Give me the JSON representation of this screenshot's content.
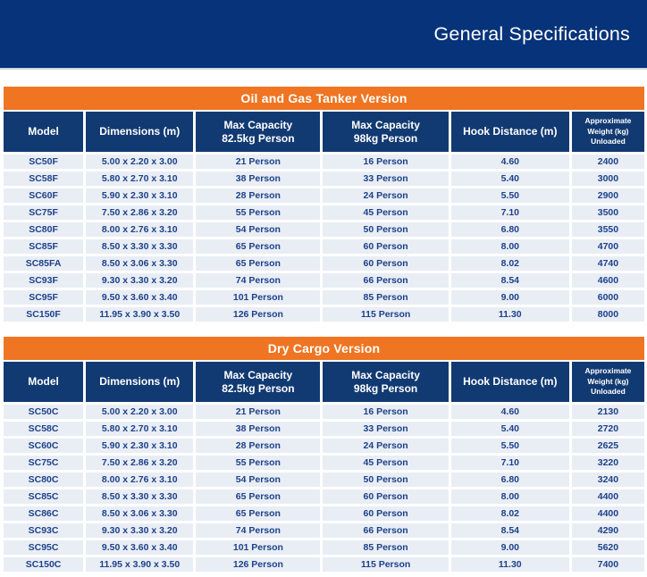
{
  "page_title": "General Specifications",
  "colors": {
    "navy_titlebar": "#07337a",
    "navy_header": "#123a72",
    "orange_banner": "#ef7522",
    "row_background": "#e9edf4",
    "row_text": "#1c418a"
  },
  "columns": [
    {
      "label": "Model"
    },
    {
      "label": "Dimensions (m)"
    },
    {
      "label": "Max Capacity\n82.5kg Person"
    },
    {
      "label": "Max Capacity\n98kg Person"
    },
    {
      "label": "Hook Distance (m)"
    },
    {
      "label": "Approximate\nWeight (kg)\nUnloaded"
    }
  ],
  "tables": [
    {
      "title": "Oil and Gas Tanker Version",
      "rows": [
        [
          "SC50F",
          "5.00 x 2.20 x 3.00",
          "21 Person",
          "16 Person",
          "4.60",
          "2400"
        ],
        [
          "SC58F",
          "5.80 x 2.70 x 3.10",
          "38 Person",
          "33 Person",
          "5.40",
          "3000"
        ],
        [
          "SC60F",
          "5.90 x 2.30 x 3.10",
          "28 Person",
          "24 Person",
          "5.50",
          "2900"
        ],
        [
          "SC75F",
          "7.50 x 2.86 x 3.20",
          "55 Person",
          "45 Person",
          "7.10",
          "3500"
        ],
        [
          "SC80F",
          "8.00 x 2.76 x 3.10",
          "54 Person",
          "50 Person",
          "6.80",
          "3550"
        ],
        [
          "SC85F",
          "8.50 x 3.30 x 3.30",
          "65 Person",
          "60 Person",
          "8.00",
          "4700"
        ],
        [
          "SC85FA",
          "8.50 x 3.06 x 3.30",
          "65 Person",
          "60 Person",
          "8.02",
          "4740"
        ],
        [
          "SC93F",
          "9.30 x 3.30 x 3.20",
          "74 Person",
          "66 Person",
          "8.54",
          "4600"
        ],
        [
          "SC95F",
          "9.50 x 3.60 x 3.40",
          "101 Person",
          "85 Person",
          "9.00",
          "6000"
        ],
        [
          "SC150F",
          "11.95 x 3.90 x 3.50",
          "126 Person",
          "115 Person",
          "11.30",
          "8000"
        ]
      ]
    },
    {
      "title": "Dry Cargo Version",
      "rows": [
        [
          "SC50C",
          "5.00 x 2.20 x 3.00",
          "21 Person",
          "16 Person",
          "4.60",
          "2130"
        ],
        [
          "SC58C",
          "5.80 x 2.70 x 3.10",
          "38 Person",
          "33 Person",
          "5.40",
          "2720"
        ],
        [
          "SC60C",
          "5.90 x 2.30 x 3.10",
          "28 Person",
          "24 Person",
          "5.50",
          "2625"
        ],
        [
          "SC75C",
          "7.50 x 2.86 x 3.20",
          "55 Person",
          "45 Person",
          "7.10",
          "3220"
        ],
        [
          "SC80C",
          "8.00 x 2.76 x 3.10",
          "54 Person",
          "50 Person",
          "6.80",
          "3240"
        ],
        [
          "SC85C",
          "8.50 x 3.30 x 3.30",
          "65 Person",
          "60 Person",
          "8.00",
          "4400"
        ],
        [
          "SC86C",
          "8.50 x 3.06 x 3.30",
          "65 Person",
          "60 Person",
          "8.02",
          "4400"
        ],
        [
          "SC93C",
          "9.30 x 3.30 x 3.20",
          "74 Person",
          "66 Person",
          "8.54",
          "4290"
        ],
        [
          "SC95C",
          "9.50 x 3.60 x 3.40",
          "101 Person",
          "85 Person",
          "9.00",
          "5620"
        ],
        [
          "SC150C",
          "11.95 x 3.90 x 3.50",
          "126 Person",
          "115 Person",
          "11.30",
          "7400"
        ]
      ]
    }
  ]
}
